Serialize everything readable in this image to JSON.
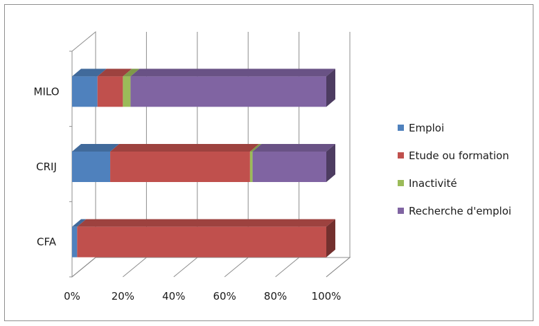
{
  "chart_data": {
    "type": "bar",
    "orientation": "horizontal",
    "stacked": "100%",
    "style": "3d",
    "title": "",
    "xlabel": "",
    "ylabel": "",
    "xlim": [
      0,
      100
    ],
    "x_ticks": [
      "0%",
      "20%",
      "40%",
      "60%",
      "80%",
      "100%"
    ],
    "categories": [
      "MILO",
      "CRIJ",
      "CFA"
    ],
    "series": [
      {
        "name": "Emploi",
        "color": "#4f81bd",
        "values": [
          10,
          15,
          2
        ]
      },
      {
        "name": "Etude ou formation",
        "color": "#c0504d",
        "values": [
          10,
          55,
          98
        ]
      },
      {
        "name": "Inactivité",
        "color": "#9bbb59",
        "values": [
          3,
          1,
          0
        ]
      },
      {
        "name": "Recherche d'emploi",
        "color": "#8064a2",
        "values": [
          77,
          29,
          0
        ]
      }
    ],
    "grid": true,
    "legend_position": "right"
  }
}
